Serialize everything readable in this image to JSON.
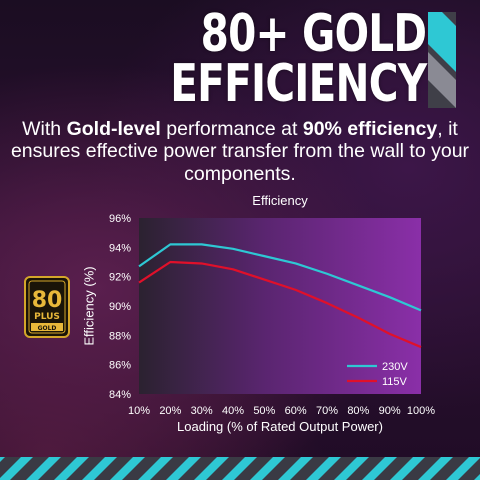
{
  "headline": {
    "line1": "80+ GOLD",
    "line2": "EFFICIENCY"
  },
  "subtitle": {
    "p1": "With ",
    "b1": "Gold-level",
    "p2": " performance at ",
    "b2": "90% efficiency",
    "p3": ", it ensures effective power transfer from the wall to your components."
  },
  "badge": {
    "top": "80",
    "mid": "PLUS",
    "bottom": "GOLD"
  },
  "colors": {
    "accent": "#2ec8d4",
    "bar_gray": "#6e6e78",
    "series_230": "#2ec8d4",
    "series_115": "#e0102a"
  },
  "chart_data": {
    "type": "line",
    "title": "Efficiency",
    "xlabel": "Loading (% of Rated Output Power)",
    "ylabel": "Efficiency (%)",
    "x": [
      10,
      20,
      30,
      40,
      50,
      60,
      70,
      80,
      90,
      100
    ],
    "x_tick_labels": [
      "10%",
      "20%",
      "30%",
      "40%",
      "50%",
      "60%",
      "70%",
      "80%",
      "90%",
      "100%"
    ],
    "y_ticks": [
      84,
      86,
      88,
      90,
      92,
      94,
      96
    ],
    "y_tick_labels": [
      "84%",
      "86%",
      "88%",
      "90%",
      "92%",
      "94%",
      "96%"
    ],
    "xlim": [
      10,
      100
    ],
    "ylim": [
      84,
      96
    ],
    "grid": false,
    "legend": "bottom-right",
    "series": [
      {
        "name": "230V",
        "color": "#2ec8d4",
        "values": [
          92.7,
          94.2,
          94.2,
          93.9,
          93.4,
          92.9,
          92.2,
          91.4,
          90.6,
          89.7
        ]
      },
      {
        "name": "115V",
        "color": "#e0102a",
        "values": [
          91.6,
          93.0,
          92.9,
          92.5,
          91.8,
          91.1,
          90.2,
          89.2,
          88.1,
          87.2
        ]
      }
    ]
  }
}
